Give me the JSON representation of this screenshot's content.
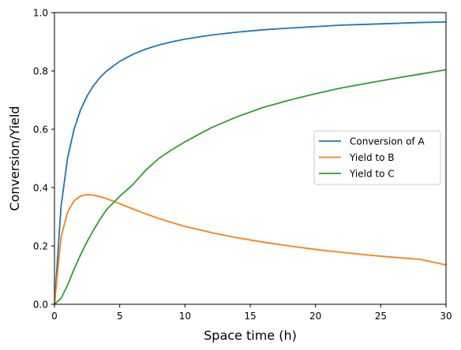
{
  "chart_data": {
    "type": "line",
    "title": "",
    "xlabel": "Space time (h)",
    "ylabel": "Conversion/Yield",
    "xlim": [
      0,
      30
    ],
    "ylim": [
      0.0,
      1.0
    ],
    "xticks": [
      0,
      5,
      10,
      15,
      20,
      25,
      30
    ],
    "yticks": [
      0.0,
      0.2,
      0.4,
      0.6,
      0.8,
      1.0
    ],
    "xtick_labels": [
      "0",
      "5",
      "10",
      "15",
      "20",
      "25",
      "30"
    ],
    "ytick_labels": [
      "0.0",
      "0.2",
      "0.4",
      "0.6",
      "0.8",
      "1.0"
    ],
    "grid": false,
    "legend_position": "center-right",
    "x": [
      0,
      0.5,
      1,
      1.5,
      2,
      2.5,
      3,
      3.5,
      4,
      5,
      6,
      7,
      8,
      9,
      10,
      12,
      14,
      16,
      18,
      20,
      22,
      24,
      26,
      28,
      30
    ],
    "series": [
      {
        "name": "Conversion of A",
        "color": "#1f77b4",
        "values": [
          0.0,
          0.333,
          0.5,
          0.6,
          0.667,
          0.714,
          0.75,
          0.778,
          0.8,
          0.833,
          0.857,
          0.875,
          0.889,
          0.9,
          0.909,
          0.923,
          0.933,
          0.941,
          0.947,
          0.952,
          0.957,
          0.96,
          0.963,
          0.966,
          0.968
        ]
      },
      {
        "name": "Yield to B",
        "color": "#ff7f0e",
        "values": [
          0.0,
          0.229,
          0.315,
          0.355,
          0.371,
          0.376,
          0.374,
          0.369,
          0.362,
          0.345,
          0.327,
          0.31,
          0.294,
          0.28,
          0.267,
          0.246,
          0.228,
          0.213,
          0.2,
          0.188,
          0.178,
          0.169,
          0.161,
          0.154,
          0.135
        ]
      },
      {
        "name": "Yield to C",
        "color": "#2ca02c",
        "values": [
          0.0,
          0.02,
          0.065,
          0.12,
          0.17,
          0.215,
          0.255,
          0.292,
          0.325,
          0.37,
          0.41,
          0.46,
          0.5,
          0.53,
          0.557,
          0.605,
          0.643,
          0.675,
          0.7,
          0.722,
          0.742,
          0.758,
          0.774,
          0.789,
          0.804
        ]
      }
    ]
  }
}
